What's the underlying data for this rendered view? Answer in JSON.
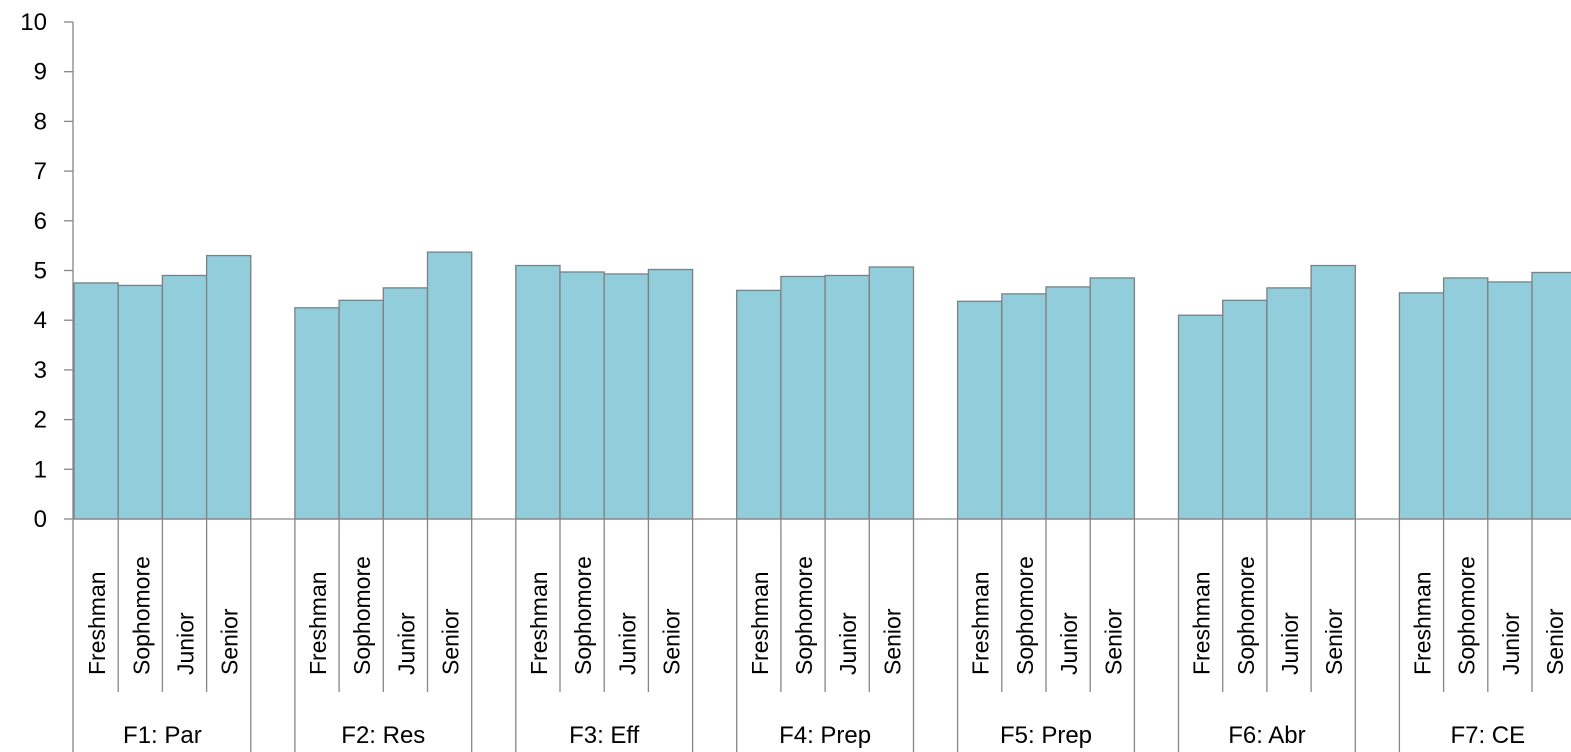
{
  "chart_data": {
    "type": "bar",
    "ylim": [
      0,
      10
    ],
    "yticks": [
      0,
      1,
      2,
      3,
      4,
      5,
      6,
      7,
      8,
      9,
      10
    ],
    "grid": false,
    "legend": "none",
    "bar_color": "#92CDDC",
    "bar_stroke": "#7F7F7F",
    "axis_color": "#868686",
    "groups": [
      {
        "label": "F1: Par",
        "categories": [
          "Freshman",
          "Sophomore",
          "Junior",
          "Senior"
        ],
        "values": [
          4.75,
          4.7,
          4.9,
          5.3
        ]
      },
      {
        "label": "F2: Res",
        "categories": [
          "Freshman",
          "Sophomore",
          "Junior",
          "Senior"
        ],
        "values": [
          4.25,
          4.4,
          4.65,
          5.37
        ]
      },
      {
        "label": "F3: Eff",
        "categories": [
          "Freshman",
          "Sophomore",
          "Junior",
          "Senior"
        ],
        "values": [
          5.1,
          4.97,
          4.93,
          5.02
        ]
      },
      {
        "label": "F4: Prep",
        "categories": [
          "Freshman",
          "Sophomore",
          "Junior",
          "Senior"
        ],
        "values": [
          4.6,
          4.88,
          4.9,
          5.07
        ]
      },
      {
        "label": "F5: Prep",
        "categories": [
          "Freshman",
          "Sophomore",
          "Junior",
          "Senior"
        ],
        "values": [
          4.38,
          4.53,
          4.67,
          4.85
        ]
      },
      {
        "label": "F6: Abr",
        "categories": [
          "Freshman",
          "Sophomore",
          "Junior",
          "Senior"
        ],
        "values": [
          4.1,
          4.4,
          4.65,
          5.1
        ]
      },
      {
        "label": "F7: CE",
        "categories": [
          "Freshman",
          "Sophomore",
          "Junior",
          "Senior"
        ],
        "values": [
          4.55,
          4.85,
          4.77,
          4.96
        ]
      }
    ]
  }
}
